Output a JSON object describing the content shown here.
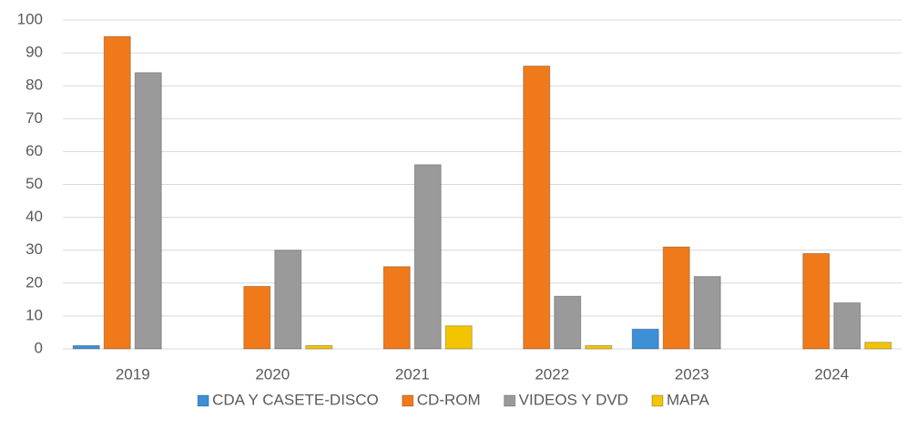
{
  "chart_data": {
    "type": "bar",
    "categories": [
      "2019",
      "2020",
      "2021",
      "2022",
      "2023",
      "2024"
    ],
    "series": [
      {
        "name": "CDA Y CASETE-DISCO",
        "color": "#3d8fd6",
        "values": [
          1,
          0,
          0,
          0,
          6,
          0
        ]
      },
      {
        "name": "CD-ROM",
        "color": "#f07a1a",
        "values": [
          95,
          19,
          25,
          86,
          31,
          29
        ]
      },
      {
        "name": "VIDEOS Y DVD",
        "color": "#9a9a9a",
        "values": [
          84,
          30,
          56,
          16,
          22,
          14
        ]
      },
      {
        "name": "MAPA",
        "color": "#f2c500",
        "values": [
          0,
          1,
          7,
          1,
          0,
          2
        ]
      }
    ],
    "ylim": [
      0,
      100
    ],
    "yticks": [
      0,
      10,
      20,
      30,
      40,
      50,
      60,
      70,
      80,
      90,
      100
    ],
    "grid": true,
    "legend": "bottom"
  }
}
